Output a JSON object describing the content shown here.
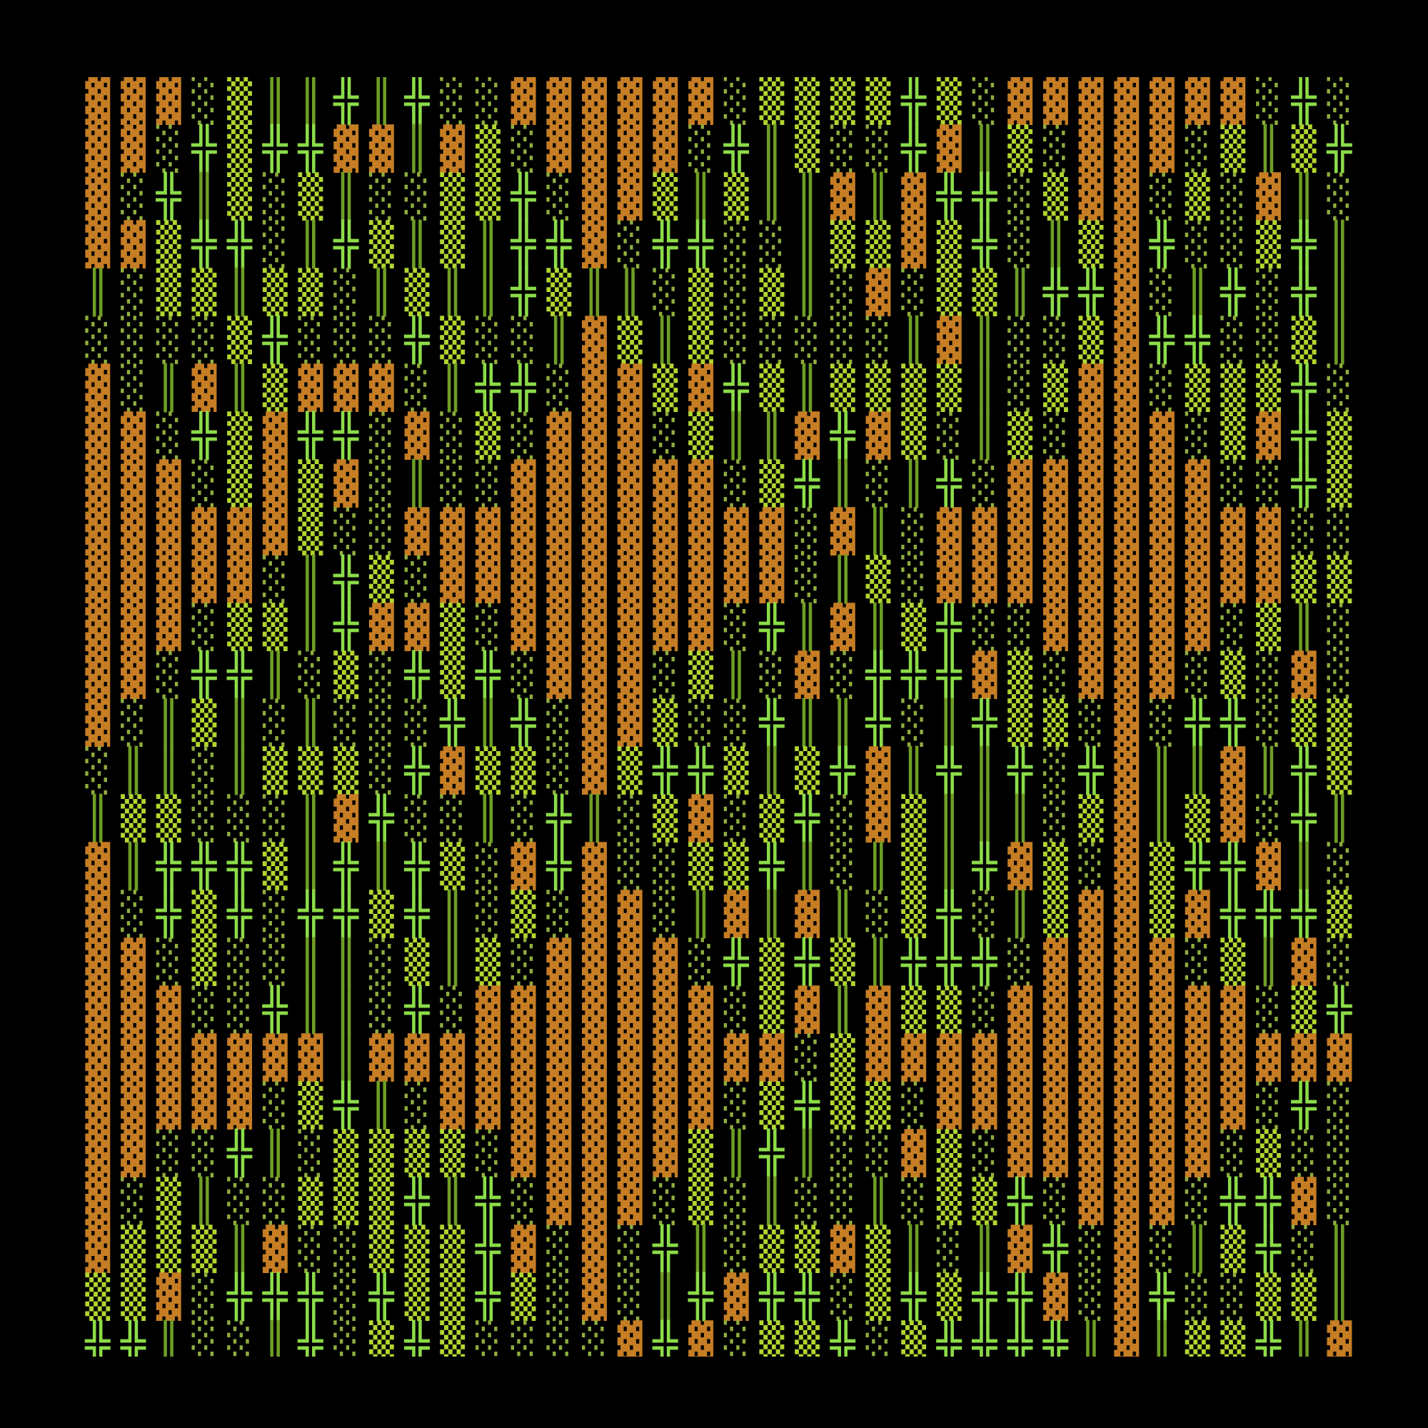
{
  "map": {
    "rows": [
      "▓▓▓░▒║║╬║╬░░▓▓▓▓▓▓░▒▒▒▒╬▒░▓▓▓▓▓▓▓░╬░▓",
      "▓▓░╬▒╬╬▓▓║▓▒░▓▓▓▓░╬║▒░░╬▓║▒░▓▓▓░▒║▒╬░",
      "▓░╬║▒░▒║░░▒▒╬░▓▓▒║▒║║▓║▓╬╬░▒▓▓░▒░▓║░▒",
      "▓▓▒╬╬░║╬▒║▒║╬╬▓░╬╬░░║▒▒▓▒╬░║▒▓╬░░▒╬║║",
      "║░▒▒║▒▒░║▒║║╬▒║║░▒░▒║░▓░▒▒║╬╬▓░║╬░╬║║",
      "░░░░▒╬░░░╬▒░░║▓▒║▒░░░░░║▓║░░▒▓╬╬░░▒║▒",
      "▓░║▓║▒▓▓▓░║╬╬░▓▓▒▓╬▒║▒▒▒▒║░▒▓▓░▒▒▒╬░║",
      "▓▓░╬▒▓╬╬░▓░▒░▓▓▓░▒║║▓╬▓▒░║▒░▓▓▓░▒▓╬▒░",
      "▓▓▓░▒▓▒▓░║░░▓▓▓▓▓▓░▒╬║░║╬░▓▓▓▓▓▓░░╬▒▓",
      "▓▓▓▓▓▓▒░░▓▓▓▓▓▓▓▓▓▓▓░▓║░▓▓▓▓▓▓▓▓▓▓░░░",
      "▓▓▓▓▓░║╬▒░▓▓▓▓▓▓▓▓▓▓░║▒░▓▓▓▓▓▓▓▓▓▓▒▒░",
      "▓▓▓░▒▒║╬▓▓▒░▓▓▓▓▓▓░╬║▓║▒╬░░▓▓▓▓▓░▒║░║",
      "▓▓░╬╬║░▒░╬▒╬░▓▓▓░▒║░▓░╬╬╬▓▒░▓▓▓░▒░▓░░",
      "▓░║▒║░║░░░╬║╬░▓▓▒░░╬║║╬░║╬▒▒░▓░╬╬░▒▒▓",
      "░║║░║▒▒▒░╬▓▒▒░▓▒╬╬▒║▒╬▓║╬║╬░╬▓║║▓║╬▒░",
      "║▒▒░░░║▓╬░░║░╬║░▒▓░▒╬░▓▒║║║░▒▓║▒▓░╬║▒",
      "▓║╬╬╬▒║╬║╬▒░▓╬▓░░▒▒╬║░║▒║╬▓▒░▓▒╬╬▓║░░",
      "▓░╬▒╬░╬╬▒╬║░▒░▓▓░║▓║▓║░▒╬░║▒▓▓▒▓╬╬╬▒░",
      "▓▓░▒░░║║░▒║▒░▓▓▓▓░╬▒╬▒║╬╬╬░▓▓▓▓░▒║▓░║",
      "▓▓▓░░╬║║░╬░▓▓▓▓▓▓▓░▒▓║▓▒▒░▓▓▓▓▓▓▓░▒╬▓",
      "▓▓▓▓▓▓▓║▓▓▓▓▓▓▓▓▓▓▓▓░▒▓▓▓▓▓▓▓▓▓▓▓▓▓▓▓",
      "▓▓▓▓▓░▒╬║░▓▓▓▓▓▓▓▓░▒╬▒▒░▓▓▓▓▓▓▓▓▓░╬░░",
      "▓▓░░╬║░▒▒▒▒░▓▓▓▓▓▒║╬║░░▓▒░▓▓▓▓▓▓░▒░░║",
      "▓░▒║░░▒▒▒╬║╬░▓▓▓░▒░║░░║░▒▒╬░▓▓▓░╬╬▓░░",
      "▓▒▒▒║▓░░▒▒▒╬▓░▓░╬║░▒▒▓▒║░║▓╬░▓░║▒╬░║║",
      "▒▒▓░╬╬╬░╬▒▒╬▒░▓░║╬▓╬╬░▒╬▒╬╬▓░▓╬░░▒▒║░",
      "╬╬║░░║╬░▒╬▒░░░░▓╬▓░▒▒╬░▒╬╬╬╬║▓║▒▒╬║▓░"
    ],
    "colors": {
      "▓": "#c67d24",
      "▒": "#b2d630",
      "░": "#8fae3e",
      "╬": "#8cdc48",
      "║": "#6f9e25"
    }
  }
}
